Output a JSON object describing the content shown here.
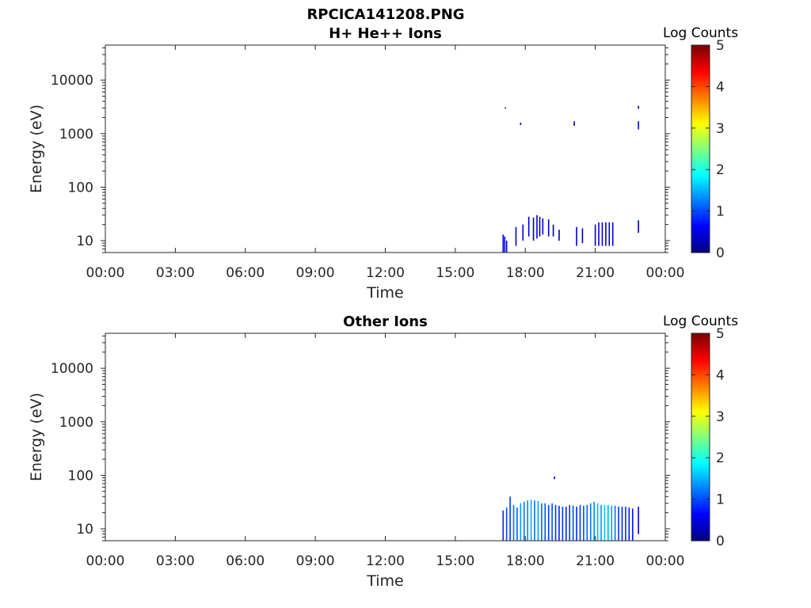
{
  "figure": {
    "title": "RPCICA141208.PNG",
    "background": "#ffffff"
  },
  "colormap": [
    "#00007f",
    "#0000ff",
    "#007fff",
    "#00ffff",
    "#7fff7f",
    "#ffff00",
    "#ff7f00",
    "#ff0000",
    "#7f0000"
  ],
  "chart_data": [
    {
      "type": "heatmap",
      "title": "H+ He++ Ions",
      "xlabel": "Time",
      "ylabel": "Energy (eV)",
      "x_ticks": [
        "00:00",
        "03:00",
        "06:00",
        "09:00",
        "12:00",
        "15:00",
        "18:00",
        "21:00",
        "00:00"
      ],
      "x_range_hours": [
        0,
        24
      ],
      "y_scale": "log",
      "y_range": [
        6,
        45000
      ],
      "y_ticks": [
        10,
        100,
        1000,
        10000
      ],
      "y_tick_labels": [
        "10",
        "100",
        "1000",
        "10000"
      ],
      "colorbar": {
        "label": "Log Counts",
        "range": [
          0,
          5
        ],
        "ticks": [
          "0",
          "1",
          "2",
          "3",
          "4",
          "5"
        ]
      },
      "streaks": [
        {
          "t": 17.05,
          "e_lo": 6,
          "e_hi": 13,
          "v": 0.6
        },
        {
          "t": 17.12,
          "e_lo": 6,
          "e_hi": 12,
          "v": 0.5
        },
        {
          "t": 17.2,
          "e_lo": 6,
          "e_hi": 10,
          "v": 0.4
        },
        {
          "t": 17.6,
          "e_lo": 8,
          "e_hi": 18,
          "v": 0.3
        },
        {
          "t": 17.9,
          "e_lo": 10,
          "e_hi": 20,
          "v": 0.3
        },
        {
          "t": 18.15,
          "e_lo": 12,
          "e_hi": 28,
          "v": 0.35
        },
        {
          "t": 18.35,
          "e_lo": 10,
          "e_hi": 27,
          "v": 0.4
        },
        {
          "t": 18.5,
          "e_lo": 11,
          "e_hi": 30,
          "v": 0.4
        },
        {
          "t": 18.62,
          "e_lo": 12,
          "e_hi": 28,
          "v": 0.35
        },
        {
          "t": 18.75,
          "e_lo": 13,
          "e_hi": 26,
          "v": 0.3
        },
        {
          "t": 19.0,
          "e_lo": 12,
          "e_hi": 25,
          "v": 0.3
        },
        {
          "t": 19.2,
          "e_lo": 12,
          "e_hi": 20,
          "v": 0.25
        },
        {
          "t": 19.45,
          "e_lo": 10,
          "e_hi": 16,
          "v": 0.2
        },
        {
          "t": 20.2,
          "e_lo": 8,
          "e_hi": 18,
          "v": 0.25
        },
        {
          "t": 20.45,
          "e_lo": 9,
          "e_hi": 17,
          "v": 0.25
        },
        {
          "t": 21.0,
          "e_lo": 8,
          "e_hi": 20,
          "v": 0.3
        },
        {
          "t": 21.15,
          "e_lo": 8,
          "e_hi": 22,
          "v": 0.45
        },
        {
          "t": 21.3,
          "e_lo": 8,
          "e_hi": 22,
          "v": 0.45
        },
        {
          "t": 21.45,
          "e_lo": 8,
          "e_hi": 22,
          "v": 0.4
        },
        {
          "t": 21.6,
          "e_lo": 8,
          "e_hi": 22,
          "v": 0.45
        },
        {
          "t": 21.75,
          "e_lo": 8,
          "e_hi": 22,
          "v": 0.4
        },
        {
          "t": 22.85,
          "e_lo": 1200,
          "e_hi": 1700,
          "v": 0.6
        },
        {
          "t": 22.85,
          "e_lo": 2900,
          "e_hi": 3300,
          "v": 0.4
        },
        {
          "t": 22.85,
          "e_lo": 14,
          "e_hi": 24,
          "v": 0.2
        },
        {
          "t": 17.15,
          "e_lo": 2950,
          "e_hi": 3100,
          "v": 0.1
        },
        {
          "t": 20.1,
          "e_lo": 1400,
          "e_hi": 1700,
          "v": 0.1
        },
        {
          "t": 17.8,
          "e_lo": 1450,
          "e_hi": 1600,
          "v": 0.1
        }
      ]
    },
    {
      "type": "heatmap",
      "title": "Other Ions",
      "xlabel": "Time",
      "ylabel": "Energy (eV)",
      "x_ticks": [
        "00:00",
        "03:00",
        "06:00",
        "09:00",
        "12:00",
        "15:00",
        "18:00",
        "21:00",
        "00:00"
      ],
      "x_range_hours": [
        0,
        24
      ],
      "y_scale": "log",
      "y_range": [
        6,
        45000
      ],
      "y_ticks": [
        10,
        100,
        1000,
        10000
      ],
      "y_tick_labels": [
        "10",
        "100",
        "1000",
        "10000"
      ],
      "colorbar": {
        "label": "Log Counts",
        "range": [
          0,
          5
        ],
        "ticks": [
          "0",
          "1",
          "2",
          "3",
          "4",
          "5"
        ]
      },
      "streaks": [
        {
          "t": 17.05,
          "e_lo": 6,
          "e_hi": 22,
          "v": 0.8
        },
        {
          "t": 17.2,
          "e_lo": 6,
          "e_hi": 25,
          "v": 1.0
        },
        {
          "t": 17.35,
          "e_lo": 6,
          "e_hi": 40,
          "v": 0.9
        },
        {
          "t": 17.5,
          "e_lo": 6,
          "e_hi": 28,
          "v": 1.2
        },
        {
          "t": 17.65,
          "e_lo": 6,
          "e_hi": 25,
          "v": 1.1
        },
        {
          "t": 17.8,
          "e_lo": 6,
          "e_hi": 30,
          "v": 1.4
        },
        {
          "t": 17.95,
          "e_lo": 6,
          "e_hi": 32,
          "v": 1.2
        },
        {
          "t": 18.1,
          "e_lo": 6,
          "e_hi": 34,
          "v": 1.3
        },
        {
          "t": 18.25,
          "e_lo": 6,
          "e_hi": 35,
          "v": 1.5
        },
        {
          "t": 18.4,
          "e_lo": 6,
          "e_hi": 34,
          "v": 1.2
        },
        {
          "t": 18.55,
          "e_lo": 6,
          "e_hi": 33,
          "v": 1.4
        },
        {
          "t": 18.7,
          "e_lo": 6,
          "e_hi": 30,
          "v": 1.1
        },
        {
          "t": 18.85,
          "e_lo": 6,
          "e_hi": 30,
          "v": 1.0
        },
        {
          "t": 19.0,
          "e_lo": 6,
          "e_hi": 28,
          "v": 0.9
        },
        {
          "t": 19.15,
          "e_lo": 6,
          "e_hi": 30,
          "v": 1.0
        },
        {
          "t": 19.3,
          "e_lo": 6,
          "e_hi": 28,
          "v": 0.9
        },
        {
          "t": 19.45,
          "e_lo": 6,
          "e_hi": 27,
          "v": 0.8
        },
        {
          "t": 19.6,
          "e_lo": 6,
          "e_hi": 26,
          "v": 0.9
        },
        {
          "t": 19.75,
          "e_lo": 6,
          "e_hi": 26,
          "v": 0.8
        },
        {
          "t": 19.9,
          "e_lo": 6,
          "e_hi": 28,
          "v": 0.9
        },
        {
          "t": 20.05,
          "e_lo": 6,
          "e_hi": 27,
          "v": 1.0
        },
        {
          "t": 20.2,
          "e_lo": 6,
          "e_hi": 26,
          "v": 0.8
        },
        {
          "t": 20.35,
          "e_lo": 6,
          "e_hi": 28,
          "v": 0.9
        },
        {
          "t": 20.5,
          "e_lo": 6,
          "e_hi": 27,
          "v": 1.0
        },
        {
          "t": 20.65,
          "e_lo": 6,
          "e_hi": 28,
          "v": 1.1
        },
        {
          "t": 20.8,
          "e_lo": 6,
          "e_hi": 30,
          "v": 1.2
        },
        {
          "t": 20.95,
          "e_lo": 6,
          "e_hi": 32,
          "v": 1.3
        },
        {
          "t": 21.1,
          "e_lo": 6,
          "e_hi": 30,
          "v": 1.5
        },
        {
          "t": 21.25,
          "e_lo": 6,
          "e_hi": 28,
          "v": 1.4
        },
        {
          "t": 21.4,
          "e_lo": 6,
          "e_hi": 28,
          "v": 1.6
        },
        {
          "t": 21.55,
          "e_lo": 6,
          "e_hi": 28,
          "v": 1.5
        },
        {
          "t": 21.7,
          "e_lo": 6,
          "e_hi": 27,
          "v": 1.4
        },
        {
          "t": 21.85,
          "e_lo": 6,
          "e_hi": 27,
          "v": 1.2
        },
        {
          "t": 22.0,
          "e_lo": 6,
          "e_hi": 26,
          "v": 0.9
        },
        {
          "t": 22.15,
          "e_lo": 6,
          "e_hi": 26,
          "v": 0.8
        },
        {
          "t": 22.3,
          "e_lo": 6,
          "e_hi": 26,
          "v": 0.8
        },
        {
          "t": 22.45,
          "e_lo": 6,
          "e_hi": 25,
          "v": 0.7
        },
        {
          "t": 22.6,
          "e_lo": 6,
          "e_hi": 24,
          "v": 0.7
        },
        {
          "t": 22.85,
          "e_lo": 8,
          "e_hi": 26,
          "v": 0.5
        },
        {
          "t": 19.25,
          "e_lo": 85,
          "e_hi": 95,
          "v": 0.2
        }
      ]
    }
  ]
}
